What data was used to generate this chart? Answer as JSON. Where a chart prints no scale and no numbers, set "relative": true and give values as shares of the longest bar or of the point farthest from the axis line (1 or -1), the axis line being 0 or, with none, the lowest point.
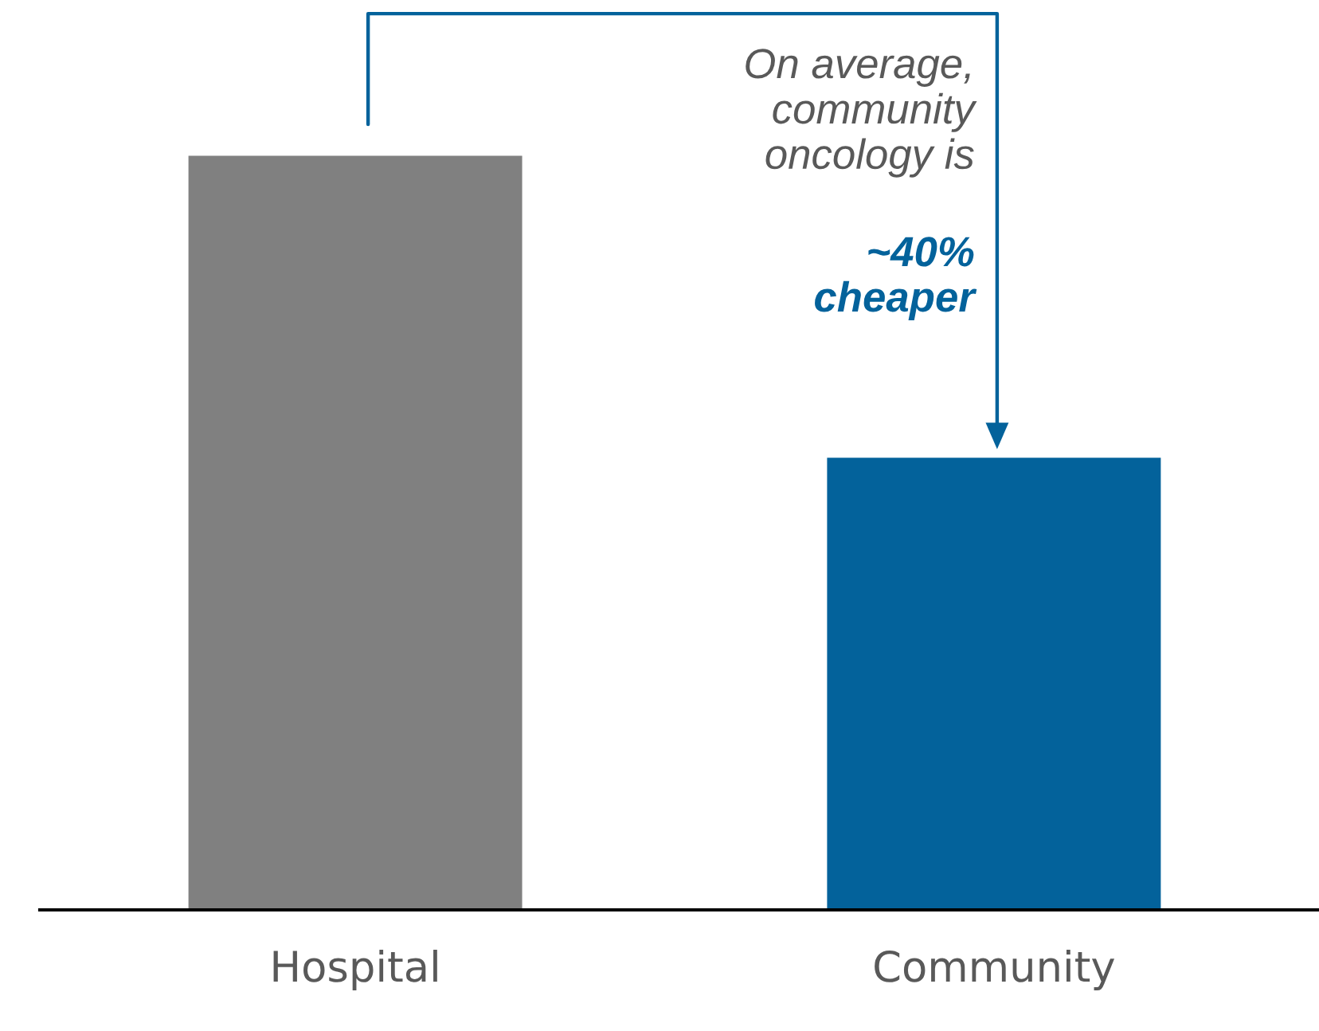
{
  "chart_data": {
    "type": "bar",
    "relative": true,
    "categories": [
      "Hospital",
      "Community"
    ],
    "values": [
      1,
      0.6
    ],
    "colors": [
      "#808080",
      "#03629b"
    ],
    "annotations": [
      "On average,\ncommunity\noncology is",
      "~40%\ncheaper"
    ]
  }
}
